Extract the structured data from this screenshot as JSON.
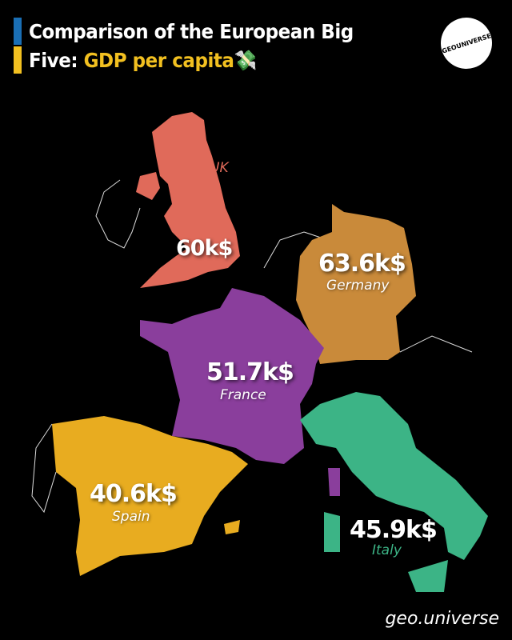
{
  "title": {
    "line1": "Comparison of the European Big",
    "line2_prefix": "Five: ",
    "line2_accent": "GDP per capita",
    "emoji_icon": "money-hand-icon"
  },
  "logo_text": "GEOUNIVERSE",
  "handle": "geo.universe",
  "colors": {
    "background": "#000000",
    "flag_blue": "#1a6fb5",
    "flag_yellow": "#f2c020",
    "accent": "#f2c020"
  },
  "countries": [
    {
      "name": "UK",
      "value": "60k$",
      "color": "#e06a5a"
    },
    {
      "name": "Germany",
      "value": "63.6k$",
      "color": "#c98a3a"
    },
    {
      "name": "France",
      "value": "51.7k$",
      "color": "#8a3e9c"
    },
    {
      "name": "Spain",
      "value": "40.6k$",
      "color": "#e8ac20"
    },
    {
      "name": "Italy",
      "value": "45.9k$",
      "color": "#3cb486"
    }
  ]
}
